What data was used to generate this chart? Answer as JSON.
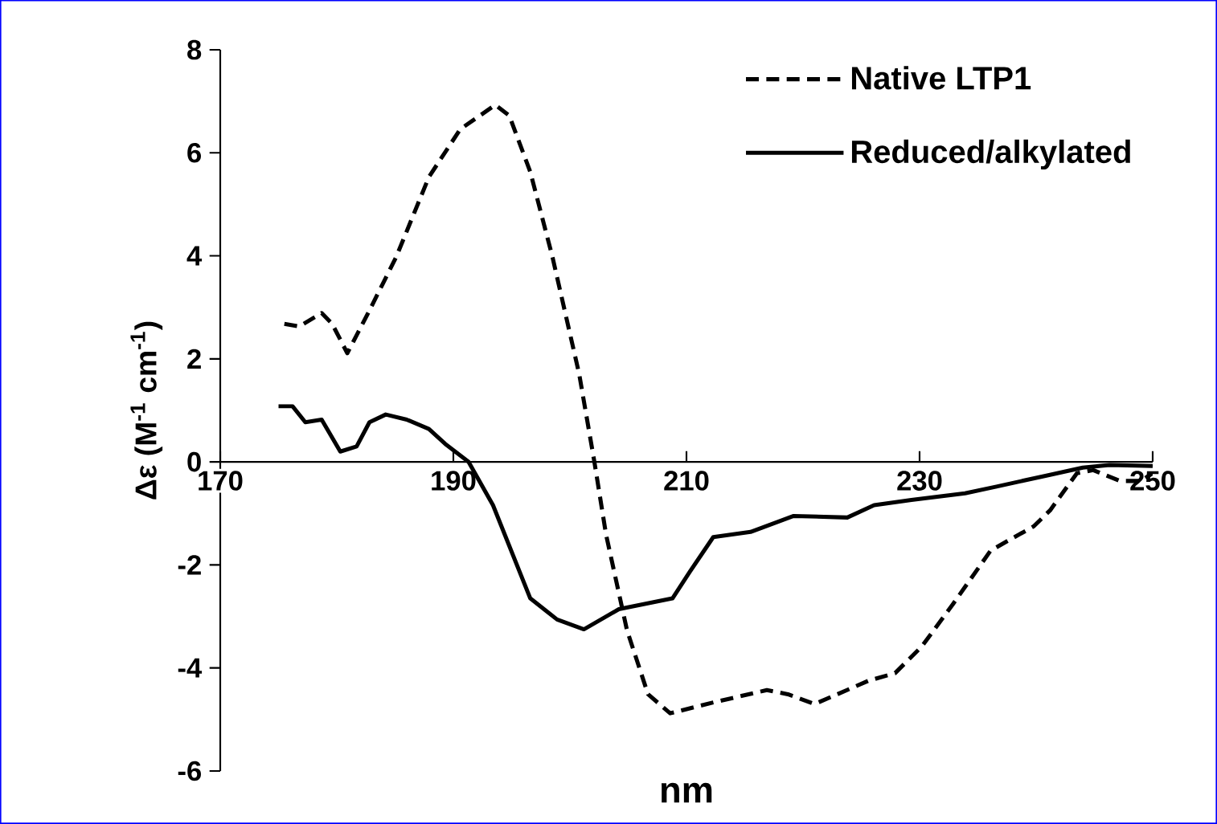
{
  "chart_data": {
    "type": "line",
    "xlabel": "nm",
    "ylabel": "Δε (M$^{-1}$ cm$^{-1}$)",
    "xlim": [
      170,
      250
    ],
    "ylim": [
      -6,
      8
    ],
    "xticks": [
      170,
      190,
      210,
      230,
      250
    ],
    "yticks": [
      -6,
      -4,
      -2,
      0,
      2,
      4,
      6,
      8
    ],
    "grid": false,
    "legend": "top right",
    "marker": "none",
    "series": [
      {
        "name": "Native LTP1",
        "color": "#000000",
        "line_style": "dashed",
        "x": [
          175.5,
          176.8,
          178.7,
          179.6,
          180.9,
          182.8,
          185.1,
          187.9,
          190.6,
          193.6,
          194.8,
          196.6,
          198.5,
          200.8,
          202.1,
          203.1,
          204.9,
          206.7,
          208.6,
          212.3,
          216.9,
          218.7,
          221.0,
          225.6,
          227.9,
          230.2,
          232.9,
          236.1,
          239.8,
          241.2,
          243.5,
          244.9,
          247.2,
          249.0,
          250.0
        ],
        "values": [
          2.68,
          2.63,
          2.89,
          2.68,
          2.11,
          2.94,
          3.98,
          5.53,
          6.46,
          6.93,
          6.72,
          5.63,
          3.98,
          1.7,
          0.0,
          -1.41,
          -3.27,
          -4.51,
          -4.88,
          -4.67,
          -4.43,
          -4.51,
          -4.7,
          -4.25,
          -4.1,
          -3.58,
          -2.75,
          -1.72,
          -1.25,
          -0.94,
          -0.22,
          -0.16,
          -0.37,
          -0.37,
          -0.22
        ]
      },
      {
        "name": "Reduced/alkylated",
        "color": "#000000",
        "line_style": "solid",
        "x": [
          175.0,
          176.2,
          177.3,
          178.7,
          180.3,
          181.7,
          182.8,
          184.2,
          186.0,
          187.9,
          189.3,
          191.3,
          193.4,
          196.6,
          198.9,
          201.2,
          204.2,
          208.8,
          210.3,
          212.3,
          215.5,
          219.2,
          223.8,
          226.1,
          229.3,
          233.9,
          236.6,
          240.8,
          244.0,
          246.3,
          250.0
        ],
        "values": [
          1.08,
          1.08,
          0.77,
          0.82,
          0.2,
          0.3,
          0.77,
          0.92,
          0.82,
          0.64,
          0.35,
          0.0,
          -0.84,
          -2.65,
          -3.06,
          -3.25,
          -2.86,
          -2.65,
          -2.13,
          -1.46,
          -1.36,
          -1.05,
          -1.08,
          -0.84,
          -0.74,
          -0.61,
          -0.48,
          -0.27,
          -0.11,
          -0.06,
          -0.08
        ]
      }
    ]
  }
}
